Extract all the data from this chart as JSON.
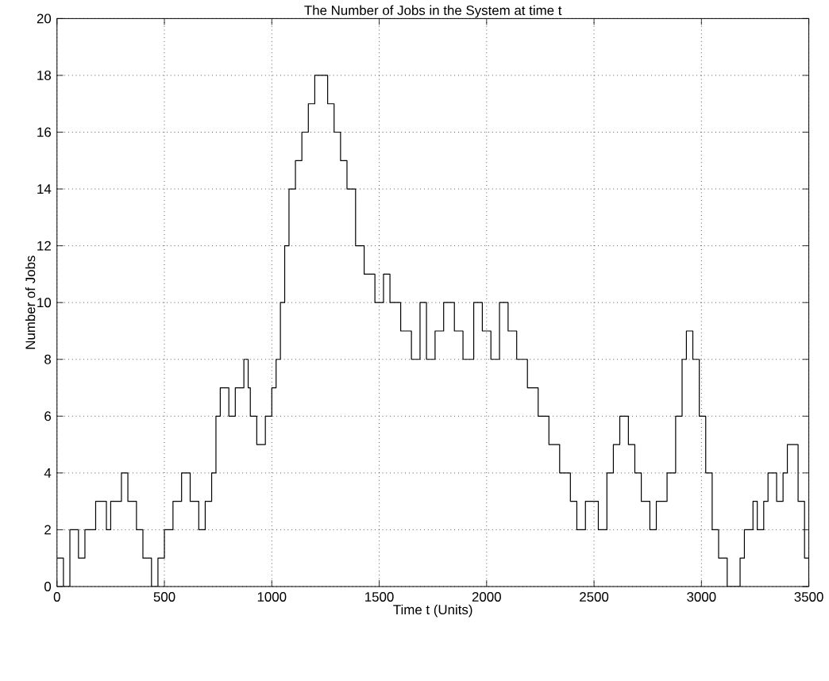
{
  "chart_data": {
    "type": "step",
    "title": "The Number of Jobs in the System at time t",
    "xlabel": "Time t (Units)",
    "ylabel": "Number of Jobs",
    "x": [
      0,
      30,
      60,
      100,
      130,
      180,
      230,
      250,
      300,
      330,
      370,
      400,
      440,
      470,
      500,
      540,
      580,
      620,
      660,
      690,
      720,
      740,
      760,
      800,
      830,
      870,
      890,
      900,
      930,
      970,
      1000,
      1020,
      1040,
      1060,
      1080,
      1110,
      1140,
      1170,
      1200,
      1260,
      1290,
      1320,
      1350,
      1390,
      1430,
      1480,
      1520,
      1550,
      1600,
      1650,
      1690,
      1720,
      1760,
      1800,
      1850,
      1890,
      1940,
      1980,
      2020,
      2060,
      2100,
      2140,
      2190,
      2240,
      2290,
      2340,
      2390,
      2420,
      2460,
      2520,
      2560,
      2590,
      2620,
      2660,
      2690,
      2720,
      2760,
      2790,
      2840,
      2880,
      2910,
      2930,
      2960,
      2990,
      3020,
      3050,
      3080,
      3120,
      3180,
      3200,
      3240,
      3260,
      3290,
      3310,
      3350,
      3380,
      3400,
      3450,
      3480,
      3500
    ],
    "series": [
      {
        "color": "#000000",
        "values": [
          1,
          0,
          2,
          1,
          2,
          3,
          2,
          3,
          4,
          3,
          2,
          1,
          0,
          1,
          2,
          3,
          4,
          3,
          2,
          3,
          4,
          6,
          7,
          6,
          7,
          8,
          7,
          6,
          5,
          6,
          7,
          8,
          10,
          12,
          14,
          15,
          16,
          17,
          18,
          17,
          16,
          15,
          14,
          12,
          11,
          10,
          11,
          10,
          9,
          8,
          10,
          8,
          9,
          10,
          9,
          8,
          10,
          9,
          8,
          10,
          9,
          8,
          7,
          6,
          5,
          4,
          3,
          2,
          3,
          2,
          4,
          5,
          6,
          5,
          4,
          3,
          2,
          3,
          4,
          6,
          8,
          9,
          8,
          6,
          4,
          2,
          1,
          0,
          1,
          2,
          3,
          2,
          3,
          4,
          3,
          4,
          5,
          3,
          1,
          0
        ]
      }
    ],
    "xlim": [
      0,
      3500
    ],
    "ylim": [
      0,
      20
    ],
    "xticks": [
      0,
      500,
      1000,
      1500,
      2000,
      2500,
      3000,
      3500
    ],
    "yticks": [
      0,
      2,
      4,
      6,
      8,
      10,
      12,
      14,
      16,
      18,
      20
    ],
    "grid": true
  }
}
